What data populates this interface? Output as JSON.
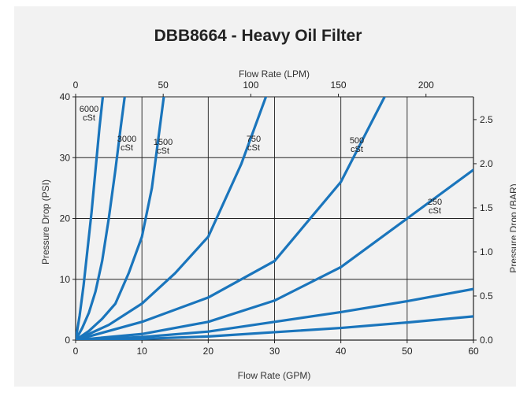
{
  "chart_data": {
    "type": "line",
    "title": "DBB8664 - Heavy Oil Filter",
    "xlabel": "Flow Rate (GPM)",
    "xlabel_top": "Flow Rate (LPM)",
    "ylabel": "Pressure Drop (PSI)",
    "ylabel_right": "Pressure Drop (BAR)",
    "xlim": [
      0,
      60
    ],
    "ylim": [
      0,
      40
    ],
    "x_top_lim": [
      0,
      227.1
    ],
    "y_right_lim": [
      0,
      2.758
    ],
    "x_ticks": [
      0,
      10,
      20,
      30,
      40,
      50,
      60
    ],
    "y_ticks": [
      0,
      10,
      20,
      30,
      40
    ],
    "x_top_ticks": [
      0,
      50,
      100,
      150,
      200
    ],
    "y_right_ticks": [
      0.0,
      0.5,
      1.0,
      1.5,
      2.0,
      2.5
    ],
    "grid": true,
    "line_color": "#1a75bc",
    "series": [
      {
        "label": [
          "6000",
          "cSt"
        ],
        "x": [
          0,
          0.6,
          1.2,
          1.8,
          2.4,
          3.0,
          3.6,
          4.1
        ],
        "y": [
          0,
          4,
          9,
          15,
          21,
          28,
          35,
          40
        ]
      },
      {
        "label": [
          "3000",
          "cSt"
        ],
        "x": [
          0,
          1,
          2,
          3,
          4,
          5,
          6,
          6.8,
          7.4
        ],
        "y": [
          0,
          2,
          4.5,
          8,
          13,
          20,
          28,
          35,
          40
        ]
      },
      {
        "label": [
          "1500",
          "cSt"
        ],
        "x": [
          0,
          2,
          4,
          6,
          8,
          10,
          11.5,
          13.3
        ],
        "y": [
          0,
          1.5,
          3.5,
          6,
          11,
          17,
          25,
          40
        ]
      },
      {
        "label": [
          "750",
          "cSt"
        ],
        "x": [
          0,
          5,
          10,
          15,
          20,
          25,
          28.7
        ],
        "y": [
          0,
          2.5,
          6,
          11,
          17,
          29,
          40
        ]
      },
      {
        "label": [
          "500",
          "cSt"
        ],
        "x": [
          0,
          10,
          20,
          30,
          40,
          46.6
        ],
        "y": [
          0,
          3,
          7,
          13,
          26,
          40
        ]
      },
      {
        "label": [
          "250",
          "cSt"
        ],
        "x": [
          0,
          10,
          20,
          30,
          40,
          50,
          60
        ],
        "y": [
          0,
          1,
          3,
          6.5,
          12,
          20,
          28
        ]
      },
      {
        "label": [],
        "x": [
          0,
          10,
          20,
          30,
          40,
          50,
          60
        ],
        "y": [
          0,
          0.5,
          1.4,
          3,
          4.6,
          6.4,
          8.4
        ]
      },
      {
        "label": [],
        "x": [
          0,
          10,
          20,
          30,
          40,
          50,
          60
        ],
        "y": [
          0,
          0.2,
          0.6,
          1.3,
          2,
          2.9,
          3.9
        ]
      }
    ]
  }
}
